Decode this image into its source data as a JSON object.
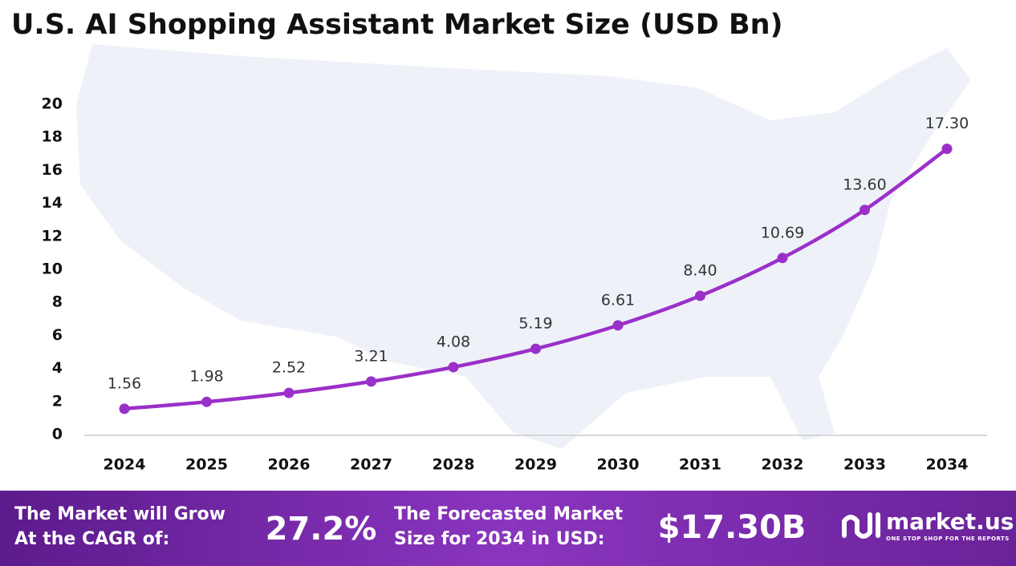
{
  "chart_data": {
    "type": "line",
    "title": "U.S. AI Shopping Assistant Market Size (USD Bn)",
    "categories": [
      "2024",
      "2025",
      "2026",
      "2027",
      "2028",
      "2029",
      "2030",
      "2031",
      "2032",
      "2033",
      "2034"
    ],
    "values": [
      1.56,
      1.98,
      2.52,
      3.21,
      4.08,
      5.19,
      6.61,
      8.4,
      10.69,
      13.6,
      17.3
    ],
    "value_labels": [
      "1.56",
      "1.98",
      "2.52",
      "3.21",
      "4.08",
      "5.19",
      "6.61",
      "8.40",
      "10.69",
      "13.60",
      "17.30"
    ],
    "color": "#9b30c9",
    "ylim": [
      0,
      20
    ],
    "yticks": [
      0,
      2,
      4,
      6,
      8,
      10,
      12,
      14,
      16,
      18,
      20
    ],
    "grid": false,
    "footer": {
      "cagr_label": [
        "The Market will Grow",
        "At the CAGR of:"
      ],
      "cagr": "27.2%",
      "forecast_label": [
        "The Forecasted Market",
        "Size for 2034 in USD:"
      ],
      "forecast": "$17.30B",
      "brand": "market.us",
      "tagline": "ONE STOP SHOP FOR THE REPORTS"
    }
  }
}
